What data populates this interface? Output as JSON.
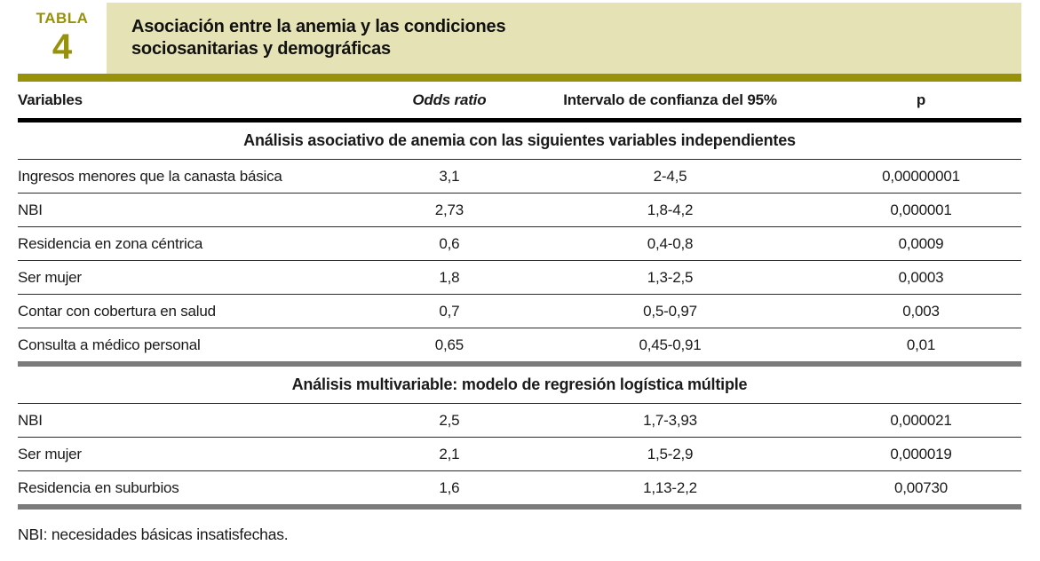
{
  "badge": {
    "label": "TABLA",
    "number": "4"
  },
  "title": {
    "line1": "Asociación entre la anemia y las condiciones",
    "line2": "sociosanitarias y demográficas"
  },
  "columns": [
    "Variables",
    "Odds ratio",
    "Intervalo de confianza del 95%",
    "p"
  ],
  "sections": [
    {
      "header": "Análisis asociativo de anemia con las siguientes variables independientes",
      "rows": [
        {
          "variable": "Ingresos menores que la canasta básica",
          "or": "3,1",
          "ci": "2-4,5",
          "p": "0,00000001"
        },
        {
          "variable": "NBI",
          "or": "2,73",
          "ci": "1,8-4,2",
          "p": "0,000001"
        },
        {
          "variable": "Residencia en zona céntrica",
          "or": "0,6",
          "ci": "0,4-0,8",
          "p": "0,0009"
        },
        {
          "variable": "Ser mujer",
          "or": "1,8",
          "ci": "1,3-2,5",
          "p": "0,0003"
        },
        {
          "variable": "Contar con cobertura en salud",
          "or": "0,7",
          "ci": "0,5-0,97",
          "p": "0,003"
        },
        {
          "variable": "Consulta a médico personal",
          "or": "0,65",
          "ci": "0,45-0,91",
          "p": "0,01"
        }
      ]
    },
    {
      "header": "Análisis multivariable: modelo de regresión logística múltiple",
      "rows": [
        {
          "variable": "NBI",
          "or": "2,5",
          "ci": "1,7-3,93",
          "p": "0,000021"
        },
        {
          "variable": "Ser mujer",
          "or": "2,1",
          "ci": "1,5-2,9",
          "p": "0,000019"
        },
        {
          "variable": "Residencia en suburbios",
          "or": "1,6",
          "ci": "1,13-2,2",
          "p": "0,00730"
        }
      ]
    }
  ],
  "footnote": "NBI: necesidades básicas insatisfechas.",
  "colors": {
    "olive": "#97920A",
    "title_background": "#E5E3B5",
    "gray_divider": "#7B7B7B",
    "text": "#1a1a1a"
  }
}
